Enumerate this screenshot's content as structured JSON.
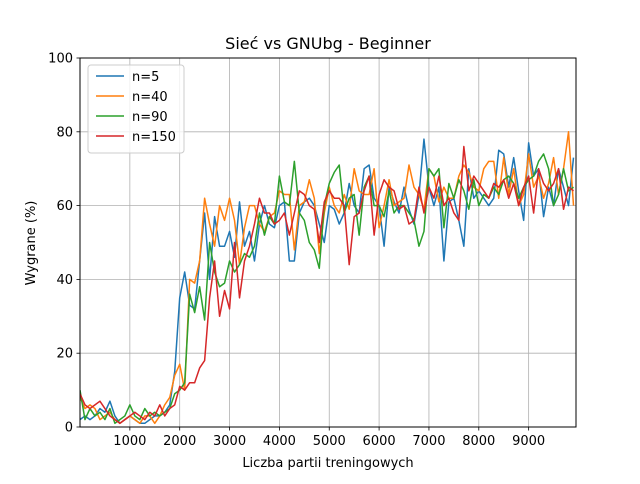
{
  "chart_data": {
    "type": "line",
    "title": "Sieć vs GNUbg - Beginner",
    "xlabel": "Liczba partii treningowych",
    "ylabel": "Wygrane (%)",
    "xlim": [
      0,
      9950
    ],
    "ylim": [
      0,
      100
    ],
    "xticks": [
      1000,
      2000,
      3000,
      4000,
      5000,
      6000,
      7000,
      8000,
      9000
    ],
    "yticks": [
      0,
      20,
      40,
      60,
      80,
      100
    ],
    "grid": true,
    "legend_position": "top-left",
    "x": [
      0,
      100,
      200,
      300,
      400,
      500,
      600,
      700,
      800,
      900,
      1000,
      1100,
      1200,
      1300,
      1400,
      1500,
      1600,
      1700,
      1800,
      1900,
      2000,
      2100,
      2200,
      2300,
      2400,
      2500,
      2600,
      2700,
      2800,
      2900,
      3000,
      3100,
      3200,
      3300,
      3400,
      3500,
      3600,
      3700,
      3800,
      3900,
      4000,
      4100,
      4200,
      4300,
      4400,
      4500,
      4600,
      4700,
      4800,
      4900,
      5000,
      5100,
      5200,
      5300,
      5400,
      5500,
      5600,
      5700,
      5800,
      5900,
      6000,
      6100,
      6200,
      6300,
      6400,
      6500,
      6600,
      6700,
      6800,
      6900,
      7000,
      7100,
      7200,
      7300,
      7400,
      7500,
      7600,
      7700,
      7800,
      7900,
      8000,
      8100,
      8200,
      8300,
      8400,
      8500,
      8600,
      8700,
      8800,
      8900,
      9000,
      9100,
      9200,
      9300,
      9400,
      9500,
      9600,
      9700,
      9800,
      9900
    ],
    "series": [
      {
        "name": "n=5",
        "color": "#1f77b4",
        "values": [
          2,
          3,
          2,
          3,
          5,
          4,
          7,
          3,
          1,
          2,
          3,
          2,
          1,
          1,
          2,
          3,
          3,
          4,
          6,
          15,
          35,
          42,
          33,
          32,
          45,
          58,
          40,
          57,
          49,
          49,
          53,
          46,
          61,
          49,
          53,
          45,
          55,
          60,
          55,
          54,
          60,
          61,
          45,
          45,
          58,
          61,
          62,
          60,
          55,
          50,
          60,
          59,
          55,
          58,
          66,
          60,
          58,
          70,
          71,
          62,
          60,
          49,
          65,
          61,
          58,
          65,
          59,
          55,
          63,
          78,
          65,
          60,
          65,
          45,
          61,
          62,
          56,
          49,
          70,
          62,
          64,
          62,
          60,
          62,
          75,
          74,
          65,
          73,
          64,
          56,
          77,
          68,
          70,
          57,
          65,
          60,
          70,
          65,
          60,
          73
        ]
      },
      {
        "name": "n=40",
        "color": "#ff7f0e",
        "values": [
          8,
          5,
          6,
          5,
          2,
          3,
          4,
          2,
          1,
          2,
          3,
          2,
          1,
          3,
          3,
          1,
          3,
          6,
          8,
          14,
          17,
          10,
          40,
          39,
          45,
          62,
          55,
          49,
          60,
          56,
          62,
          56,
          44,
          54,
          60,
          60,
          55,
          53,
          57,
          58,
          64,
          63,
          63,
          48,
          60,
          61,
          67,
          62,
          47,
          58,
          65,
          60,
          58,
          63,
          59,
          70,
          64,
          63,
          63,
          70,
          54,
          60,
          67,
          60,
          61,
          62,
          71,
          65,
          63,
          59,
          70,
          68,
          61,
          65,
          62,
          62,
          68,
          71,
          69,
          65,
          64,
          70,
          72,
          72,
          62,
          73,
          63,
          70,
          60,
          63,
          74,
          65,
          68,
          62,
          66,
          73,
          63,
          70,
          80,
          60
        ]
      },
      {
        "name": "n=90",
        "color": "#2ca02c",
        "values": [
          10,
          2,
          5,
          3,
          4,
          2,
          5,
          1,
          2,
          3,
          6,
          3,
          2,
          5,
          3,
          4,
          3,
          4,
          5,
          9,
          10,
          12,
          36,
          31,
          38,
          29,
          50,
          42,
          38,
          39,
          45,
          42,
          44,
          47,
          46,
          49,
          58,
          52,
          57,
          55,
          68,
          61,
          60,
          72,
          58,
          56,
          50,
          48,
          43,
          60,
          66,
          69,
          71,
          58,
          62,
          63,
          52,
          65,
          68,
          60,
          60,
          57,
          64,
          58,
          60,
          60,
          58,
          56,
          49,
          53,
          70,
          68,
          70,
          54,
          66,
          62,
          67,
          64,
          59,
          67,
          60,
          63,
          62,
          65,
          63,
          67,
          68,
          66,
          62,
          65,
          67,
          68,
          72,
          74,
          70,
          60,
          63,
          70,
          64,
          65
        ]
      },
      {
        "name": "n=150",
        "color": "#d62728",
        "values": [
          9,
          6,
          5,
          6,
          7,
          5,
          3,
          2,
          1,
          2,
          3,
          4,
          3,
          2,
          4,
          3,
          6,
          3,
          5,
          6,
          11,
          10,
          12,
          12,
          16,
          18,
          35,
          45,
          30,
          37,
          32,
          50,
          35,
          45,
          49,
          55,
          62,
          58,
          58,
          55,
          56,
          58,
          52,
          58,
          64,
          63,
          60,
          59,
          50,
          61,
          64,
          62,
          62,
          60,
          44,
          57,
          58,
          64,
          68,
          52,
          63,
          67,
          65,
          64,
          59,
          60,
          55,
          56,
          65,
          58,
          65,
          62,
          68,
          60,
          62,
          58,
          56,
          76,
          64,
          68,
          66,
          64,
          62,
          66,
          65,
          67,
          62,
          66,
          60,
          65,
          68,
          58,
          70,
          66,
          64,
          66,
          70,
          59,
          65,
          64
        ]
      }
    ]
  }
}
